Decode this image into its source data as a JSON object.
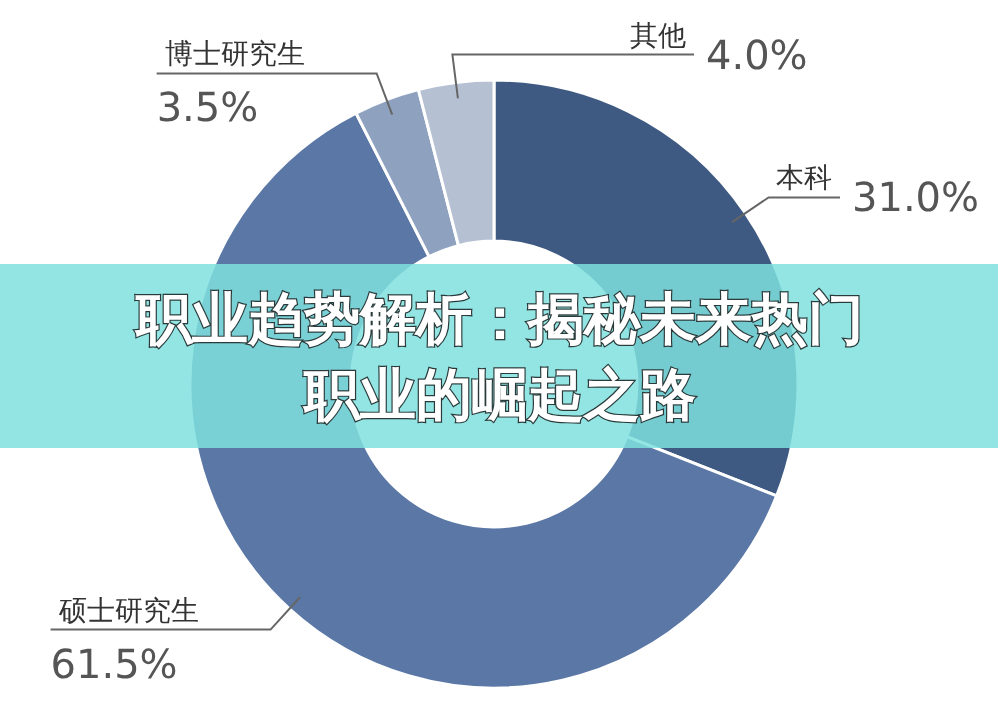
{
  "chart_data": {
    "type": "donut",
    "title": "职业趋势解析：揭秘未来热门职业的崛起之路",
    "categories": [
      "本科",
      "硕士研究生",
      "博士研究生",
      "其他"
    ],
    "values": [
      31.0,
      61.5,
      3.5,
      4.0
    ],
    "value_labels": [
      "31.0%",
      "61.5%",
      "3.5%",
      "4.0%"
    ],
    "colors": [
      "#3e5a82",
      "#5a77a6",
      "#8ea2c0",
      "#b5c1d3"
    ]
  }
}
